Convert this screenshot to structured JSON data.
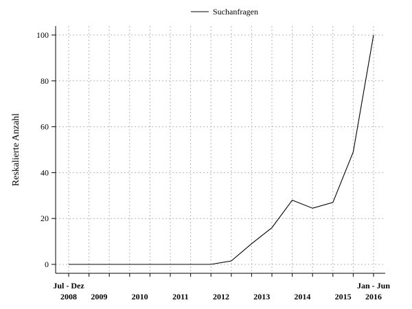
{
  "chart_data": {
    "type": "line",
    "ylabel": "Reskalierte Anzahl",
    "xlabel": "",
    "ylim": [
      0,
      100
    ],
    "y_ticks": [
      0,
      20,
      40,
      60,
      80,
      100
    ],
    "grid": true,
    "legend_position": "top-center",
    "x_period_labels": [
      "Jul - Dez",
      "Jan - Jun"
    ],
    "x_year_labels": [
      "2008",
      "2009",
      "2010",
      "2011",
      "2012",
      "2013",
      "2014",
      "2015",
      "2016"
    ],
    "categories": [
      "2008 Jul - Dez",
      "2009 Jan - Jun",
      "2009 Jul - Dez",
      "2010 Jan - Jun",
      "2010 Jul - Dez",
      "2011 Jan - Jun",
      "2011 Jul - Dez",
      "2012 Jan - Jun",
      "2012 Jul - Dez",
      "2013 Jan - Jun",
      "2013 Jul - Dez",
      "2014 Jan - Jun",
      "2014 Jul - Dez",
      "2015 Jan - Jun",
      "2015 Jul - Dez",
      "2016 Jan - Jun"
    ],
    "series": [
      {
        "name": "Suchanfragen",
        "color": "#000000",
        "values": [
          0,
          0,
          0,
          0,
          0,
          0,
          0,
          0,
          1.5,
          9,
          16,
          28,
          24.5,
          27,
          49,
          100
        ]
      }
    ]
  }
}
